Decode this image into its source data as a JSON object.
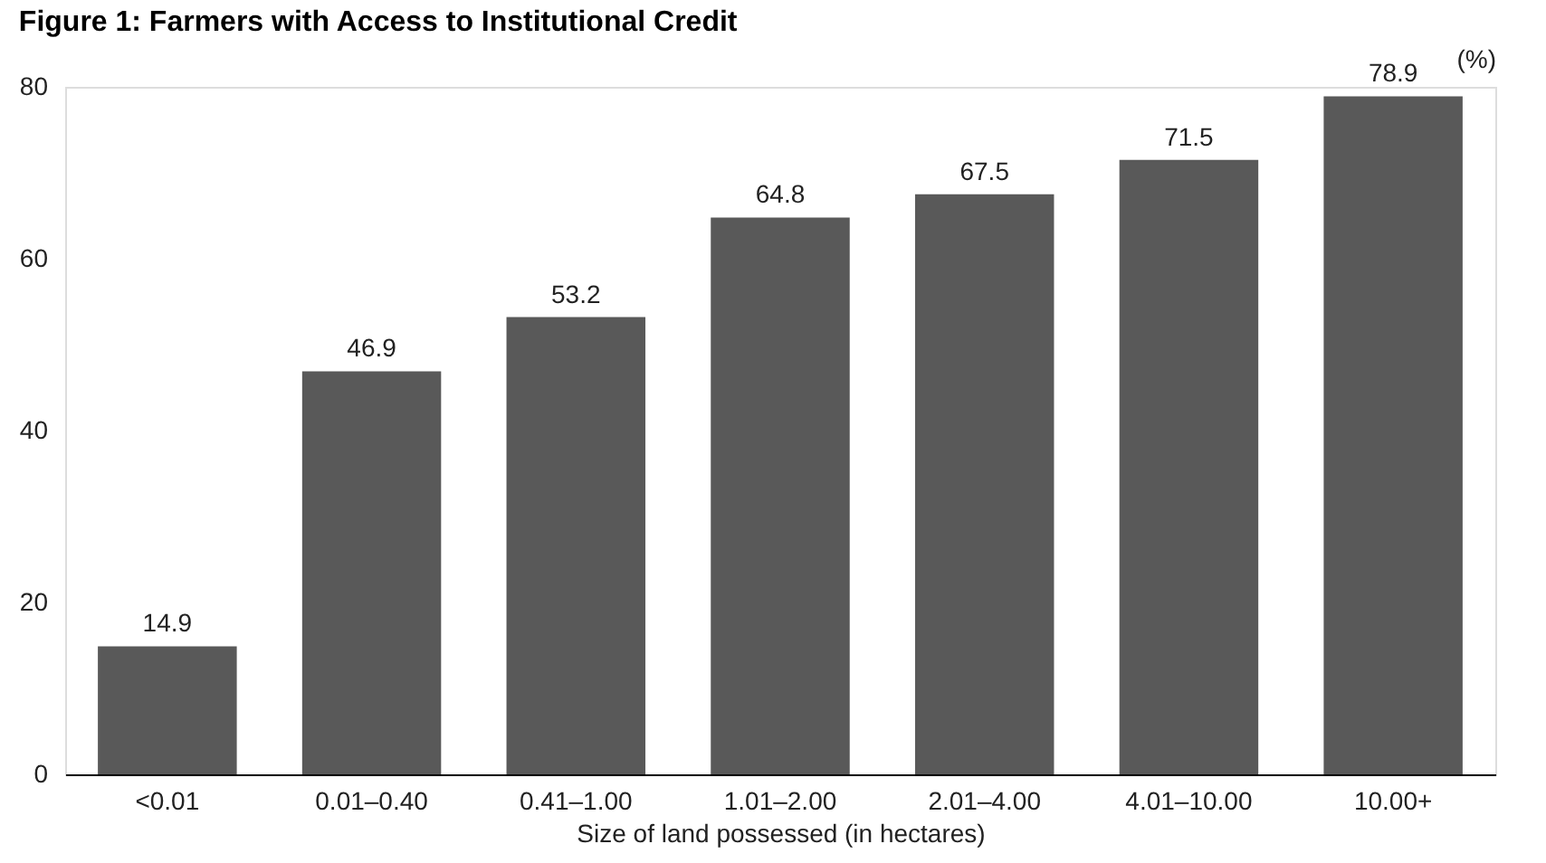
{
  "chart_data": {
    "type": "bar",
    "title": "Figure 1: Farmers with Access to Institutional Credit",
    "xlabel": "Size of land possessed (in hectares)",
    "ylabel": "(%)",
    "categories": [
      "<0.01",
      "0.01–0.40",
      "0.41–1.00",
      "1.01–2.00",
      "2.01–4.00",
      "4.01–10.00",
      "10.00+"
    ],
    "values": [
      14.9,
      46.9,
      53.2,
      64.8,
      67.5,
      71.5,
      78.9
    ],
    "color": "#595959",
    "ylim": [
      0,
      80
    ],
    "yticks": [
      0,
      20,
      40,
      60,
      80
    ],
    "data_labels": true
  }
}
